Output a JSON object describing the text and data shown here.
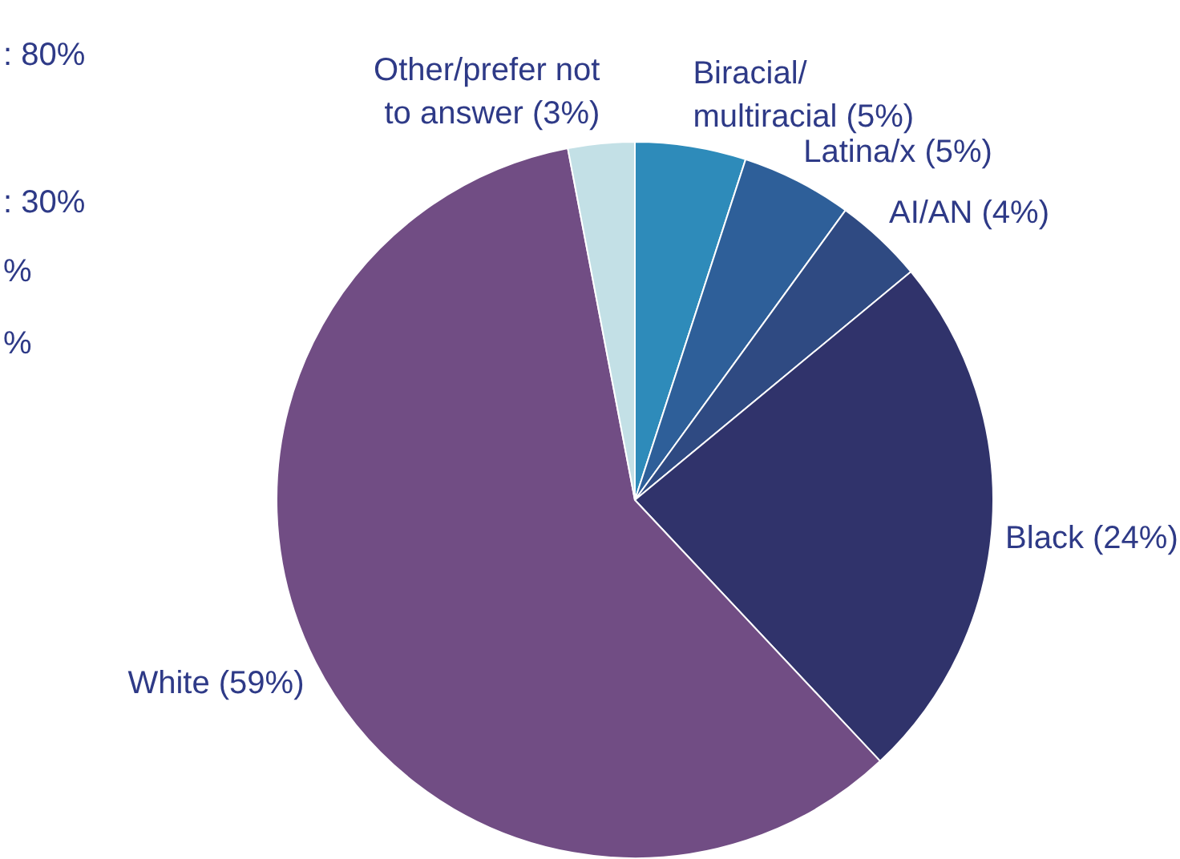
{
  "chart_data": {
    "type": "pie",
    "categories": [
      "Biracial/\nmultiracial (5%)",
      "Latina/x (5%)",
      "AI/AN (4%)",
      "Black (24%)",
      "White (59%)",
      "Other/prefer not\nto answer (3%)"
    ],
    "values": [
      5,
      5,
      4,
      24,
      59,
      3
    ],
    "colors": [
      "#2e8bba",
      "#2e5f99",
      "#2f4a82",
      "#30336b",
      "#714d84",
      "#c3e0e6"
    ],
    "annotations": [
      ": 80%",
      ": 30%",
      "%",
      "%"
    ]
  }
}
